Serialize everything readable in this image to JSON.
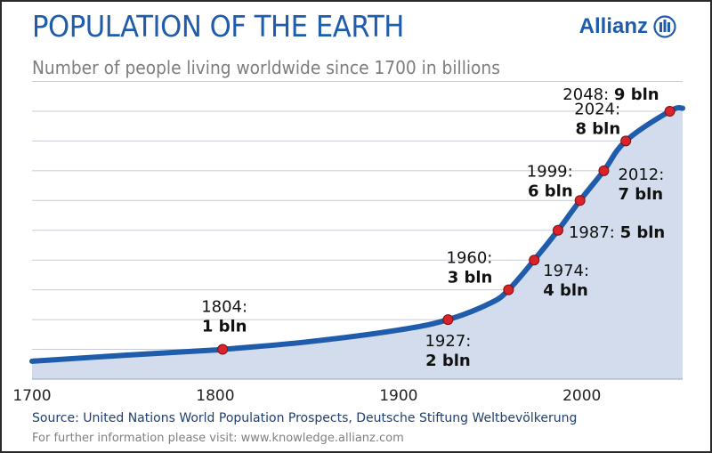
{
  "header": {
    "title": "POPULATION OF THE EARTH",
    "subtitle": "Number of people living worldwide since 1700 in billions",
    "brand": "Allianz"
  },
  "footer": {
    "source": "Source: United Nations World Population Prospects, Deutsche Stiftung Weltbevölkerung",
    "info": "For further information please visit:  www.knowledge.allianz.com"
  },
  "colors": {
    "line": "#1f5cab",
    "area": "#d3dcec",
    "marker": "#d8232a",
    "grid": "#c6cbd6",
    "title": "#1f5cab"
  },
  "chart_data": {
    "type": "area",
    "title": "POPULATION OF THE EARTH",
    "subtitle": "Number of people living worldwide since 1700 in billions",
    "xlabel": "",
    "ylabel": "",
    "xlim": [
      1700,
      2055
    ],
    "ylim": [
      0,
      10
    ],
    "x_ticks": [
      1700,
      1800,
      1900,
      2000
    ],
    "grid": "horizontal",
    "series": [
      {
        "x": [
          1700,
          1750,
          1800,
          1804,
          1850,
          1900,
          1927,
          1950,
          1960,
          1974,
          1987,
          1999,
          2012,
          2024,
          2048,
          2055
        ],
        "values": [
          0.6,
          0.8,
          0.98,
          1.0,
          1.25,
          1.65,
          2.0,
          2.55,
          3.0,
          4.0,
          5.0,
          6.0,
          7.0,
          8.0,
          9.0,
          9.1
        ]
      }
    ],
    "milestones": [
      {
        "year": 1804,
        "value": 1,
        "year_label": "1804:",
        "value_label": "1 bln"
      },
      {
        "year": 1927,
        "value": 2,
        "year_label": "1927:",
        "value_label": "2 bln"
      },
      {
        "year": 1960,
        "value": 3,
        "year_label": "1960:",
        "value_label": "3 bln"
      },
      {
        "year": 1974,
        "value": 4,
        "year_label": "1974:",
        "value_label": "4 bln"
      },
      {
        "year": 1987,
        "value": 5,
        "year_label": "1987:",
        "value_label": "5 bln"
      },
      {
        "year": 1999,
        "value": 6,
        "year_label": "1999:",
        "value_label": "6 bln"
      },
      {
        "year": 2012,
        "value": 7,
        "year_label": "2012:",
        "value_label": "7 bln"
      },
      {
        "year": 2024,
        "value": 8,
        "year_label": "2024:",
        "value_label": "8 bln"
      },
      {
        "year": 2048,
        "value": 9,
        "year_label": "2048:",
        "value_label": "9 bln"
      }
    ]
  }
}
